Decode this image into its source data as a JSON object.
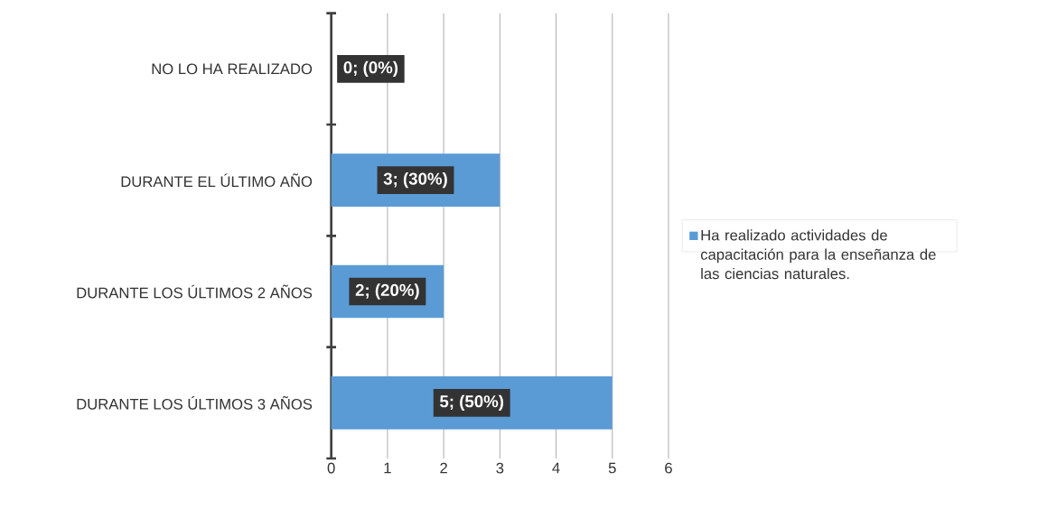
{
  "chart_data": {
    "type": "bar",
    "orientation": "horizontal",
    "categories": [
      "NO LO HA REALIZADO",
      "DURANTE EL ÚLTIMO AÑO",
      "DURANTE LOS ÚLTIMOS 2 AÑOS",
      "DURANTE LOS ÚLTIMOS 3 AÑOS"
    ],
    "series": [
      {
        "name": "Ha realizado actividades de capacitación para la enseñanza de las ciencias naturales.",
        "color": "#5b9bd5",
        "values": [
          0,
          3,
          2,
          5
        ],
        "value_labels": [
          "0; (0%)",
          "3; (30%)",
          "2; (20%)",
          "5; (50%)"
        ]
      }
    ],
    "xlim": [
      0,
      6
    ],
    "xticks": [
      0,
      1,
      2,
      3,
      4,
      5,
      6
    ],
    "grid": "x",
    "legend": "right"
  }
}
